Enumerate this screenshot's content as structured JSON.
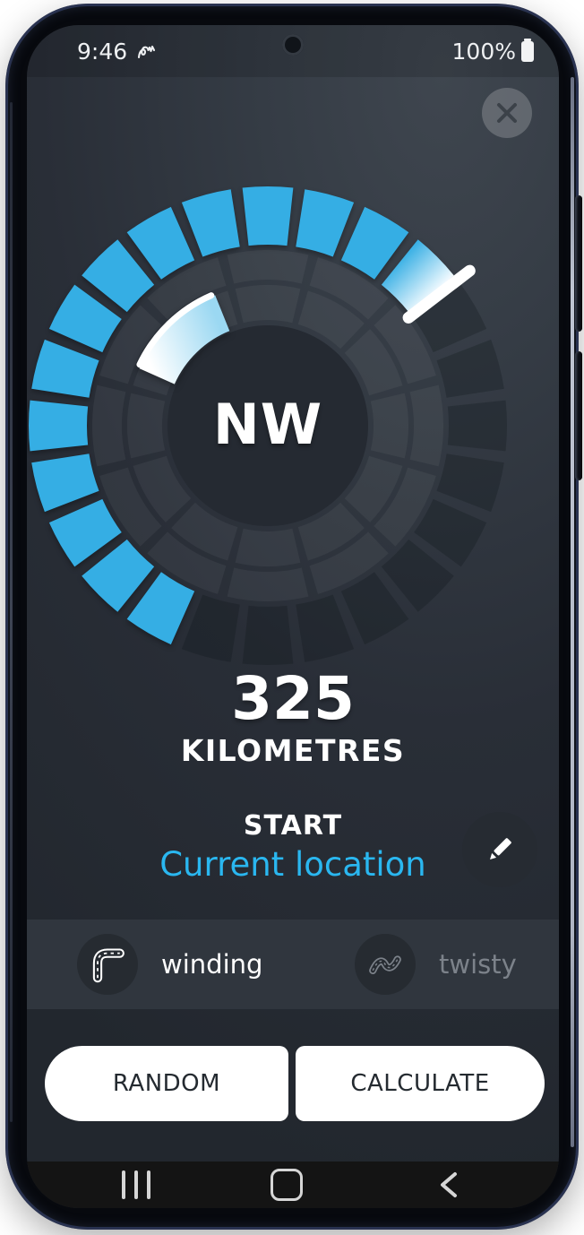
{
  "status_bar": {
    "time": "9:46",
    "battery_percent": "100%"
  },
  "dial": {
    "type": "gauge",
    "center_label": "NW",
    "outer_segment_count": 24,
    "outer_segment_step_deg": 15,
    "inner_ring_segment_count": 12,
    "selected_range_deg": {
      "from": 202.5,
      "to": 52.5
    },
    "handle_tick_deg": 52.5,
    "pointer_wedge_deg": {
      "from": 294,
      "to": 338
    },
    "colors": {
      "selected": "#35aee4",
      "selected_highlight": "#f4fbff",
      "unselected": "rgba(16,20,26,0.28)",
      "ring": "rgba(255,255,255,0.05)",
      "hub": "#252a32",
      "pointer_from": "#ffffff",
      "pointer_to": "#9bd8f2",
      "handle": "#ffffff"
    }
  },
  "distance": {
    "value": "325",
    "unit": "KILOMETRES"
  },
  "start": {
    "label": "START",
    "value": "Current location",
    "accent_color": "#2ab7f0"
  },
  "route_options": [
    {
      "id": "winding",
      "label": "winding",
      "selected": true
    },
    {
      "id": "twisty",
      "label": "twisty",
      "selected": false
    }
  ],
  "actions": {
    "random_label": "RANDOM",
    "calculate_label": "CALCULATE"
  }
}
